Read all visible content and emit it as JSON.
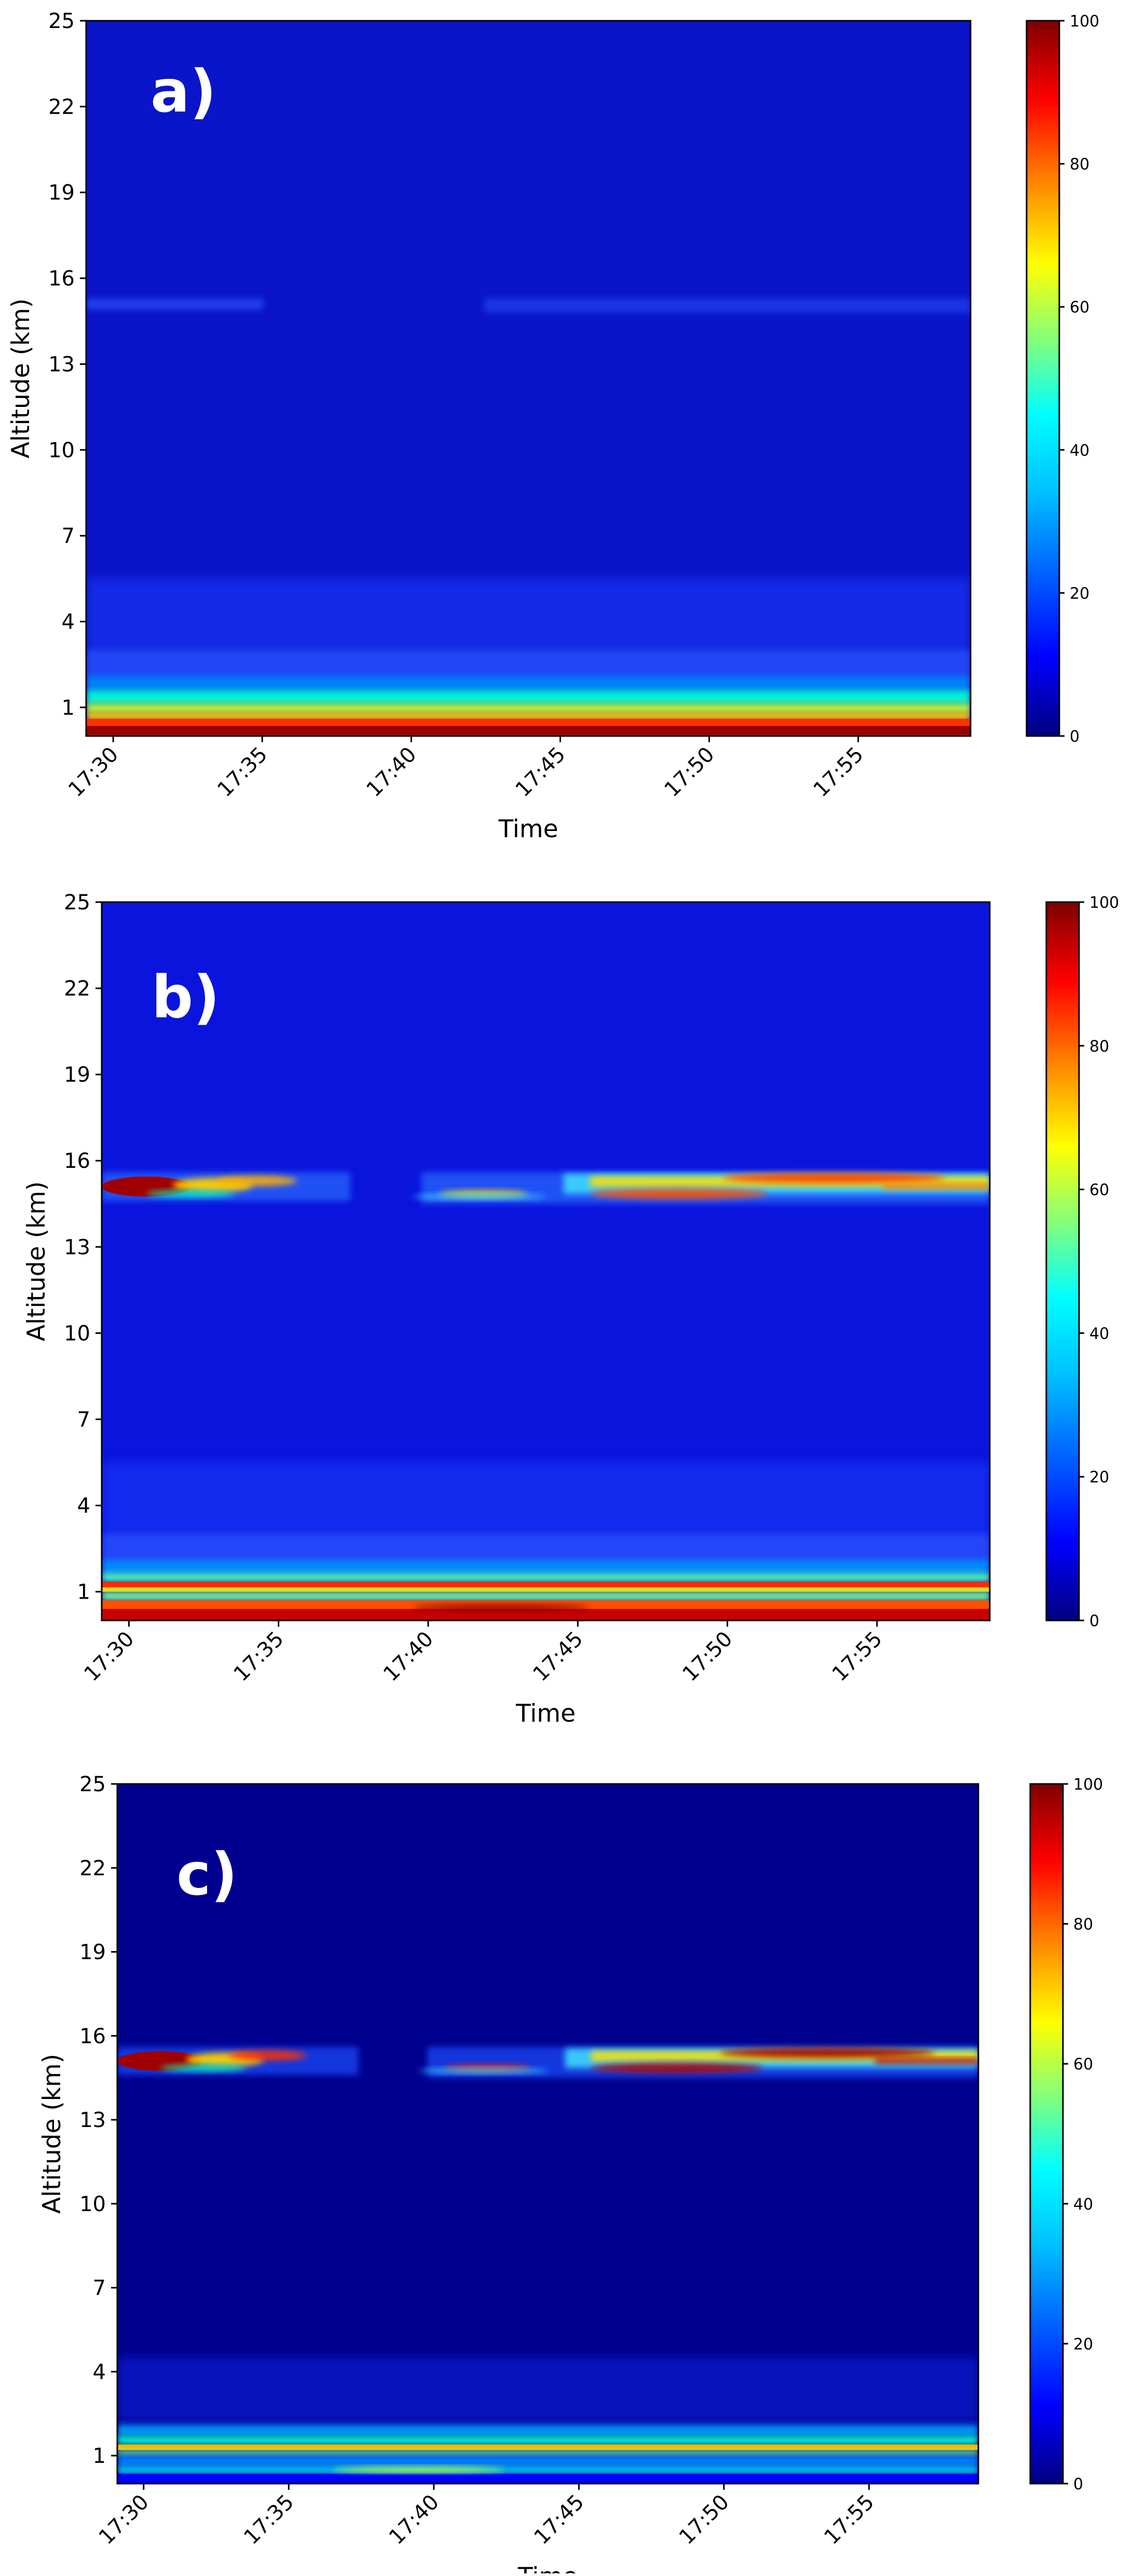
{
  "colors": {
    "background": "#ffffff",
    "colormap": "jet",
    "colormap_stops": [
      "#00007f",
      "#0000ff",
      "#007fff",
      "#00ffff",
      "#7fff7f",
      "#ffff00",
      "#ff7f00",
      "#ff0000",
      "#7f0000"
    ]
  },
  "chart_data": [
    {
      "type": "heatmap",
      "panel_label": "a)",
      "xlabel": "Time",
      "ylabel": "Altitude (km)",
      "xticks": [
        "17:30",
        "17:35",
        "17:40",
        "17:45",
        "17:50",
        "17:55"
      ],
      "yticks": [
        "1",
        "4",
        "7",
        "10",
        "13",
        "16",
        "19",
        "22",
        "25"
      ],
      "ylim": [
        0,
        25
      ],
      "colorbar": {
        "range": [
          0,
          100
        ],
        "ticks": [
          "0",
          "20",
          "40",
          "60",
          "80",
          "100"
        ]
      },
      "features": [
        {
          "description_value": "surface boundary layer",
          "altitude_km": [
            0,
            1.8
          ],
          "peak_value": 100
        },
        {
          "description_value": "faint layer",
          "altitude_km": [
            14.9,
            15.3
          ],
          "peak_value": 18
        }
      ]
    },
    {
      "type": "heatmap",
      "panel_label": "b)",
      "xlabel": "Time",
      "ylabel": "Altitude (km)",
      "xticks": [
        "17:30",
        "17:35",
        "17:40",
        "17:45",
        "17:50",
        "17:55"
      ],
      "yticks": [
        "1",
        "4",
        "7",
        "10",
        "13",
        "16",
        "19",
        "22",
        "25"
      ],
      "ylim": [
        0,
        25
      ],
      "colorbar": {
        "range": [
          0,
          100
        ],
        "ticks": [
          "0",
          "20",
          "40",
          "60",
          "80",
          "100"
        ]
      },
      "features": [
        {
          "description_value": "surface boundary layer",
          "altitude_km": [
            0,
            1.9
          ],
          "peak_value": 100
        },
        {
          "description_value": "upper cloud layer",
          "altitude_km": [
            14.6,
            15.6
          ],
          "peak_value": 95
        }
      ]
    },
    {
      "type": "heatmap",
      "panel_label": "c)",
      "xlabel": "Time",
      "ylabel": "Altitude (km)",
      "xticks": [
        "17:30",
        "17:35",
        "17:40",
        "17:45",
        "17:50",
        "17:55"
      ],
      "yticks": [
        "1",
        "4",
        "7",
        "10",
        "13",
        "16",
        "19",
        "22",
        "25"
      ],
      "ylim": [
        0,
        25
      ],
      "colorbar": {
        "range": [
          0,
          100
        ],
        "ticks": [
          "0",
          "20",
          "40",
          "60",
          "80",
          "100"
        ]
      },
      "features": [
        {
          "description_value": "surface boundary layer",
          "altitude_km": [
            0,
            1.8
          ],
          "peak_value": 75
        },
        {
          "description_value": "upper cloud layer",
          "altitude_km": [
            14.6,
            15.6
          ],
          "peak_value": 100
        }
      ]
    }
  ]
}
